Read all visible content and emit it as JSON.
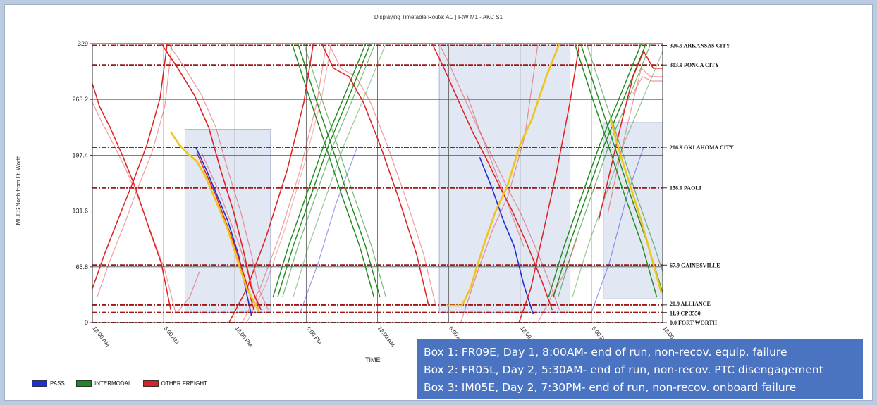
{
  "chart_data": {
    "type": "line",
    "title": "Displaying Timetable Route: AC | FtW M1 - AKC S1",
    "xlabel": "TIME",
    "ylabel": "MILES North from Ft. Worth",
    "xlim": [
      0,
      48
    ],
    "ylim": [
      0,
      329
    ],
    "y_ticks": [
      0,
      65.8,
      131.6,
      197.4,
      263.2,
      329
    ],
    "x_ticks": [
      {
        "t": 0,
        "label": "12:00 AM"
      },
      {
        "t": 6,
        "label": "6:00 AM"
      },
      {
        "t": 12,
        "label": "12:00 PM"
      },
      {
        "t": 18,
        "label": "6:00 PM"
      },
      {
        "t": 24,
        "label": "12:00 AM"
      },
      {
        "t": 30,
        "label": "6:00 AM"
      },
      {
        "t": 36,
        "label": "12:00 PM"
      },
      {
        "t": 42,
        "label": "6:00 PM"
      },
      {
        "t": 48,
        "label": "12:00 AM"
      }
    ],
    "stations": [
      {
        "mile": 326.9,
        "label": "326.9  ARKANSAS CITY"
      },
      {
        "mile": 303.9,
        "label": "303.9  PONCA CITY"
      },
      {
        "mile": 206.9,
        "label": "206.9  OKLAHOMA CITY"
      },
      {
        "mile": 158.9,
        "label": "158.9  PAOLI"
      },
      {
        "mile": 67.9,
        "label": "67.9  GAINESVILLE"
      },
      {
        "mile": 20.9,
        "label": "20.9  ALLIANCE"
      },
      {
        "mile": 11.9,
        "label": "11.9  CP 3550"
      },
      {
        "mile": 0.0,
        "label": "0.0  FORT WORTH"
      }
    ],
    "highlight_boxes": [
      {
        "t0": 7.8,
        "t1": 15.0,
        "m0": 12,
        "m1": 228
      },
      {
        "t0": 29.2,
        "t1": 40.2,
        "m0": 12,
        "m1": 329
      },
      {
        "t0": 43.0,
        "t1": 48.0,
        "m0": 28,
        "m1": 236
      }
    ],
    "series": [
      {
        "name": "PASS.",
        "color": "#1f2fd6",
        "trains": [
          {
            "x": [
              8.7,
              9.6,
              10.5,
              11.4,
              12.3,
              12.9,
              13.4
            ],
            "y": [
              207,
              180,
              150,
              120,
              80,
              40,
              8
            ],
            "w": 1.6
          },
          {
            "x": [
              17.5,
              19.0,
              20.5,
              22.3
            ],
            "y": [
              12,
              70,
              140,
              207
            ],
            "w": 1.1,
            "o": 0.5
          },
          {
            "x": [
              32.6,
              33.6,
              34.6,
              35.5,
              36.3,
              37.1
            ],
            "y": [
              195,
              160,
              120,
              90,
              45,
              10
            ],
            "w": 1.6
          },
          {
            "x": [
              42.0,
              43.5,
              45.0,
              46.4
            ],
            "y": [
              12,
              70,
              150,
              207
            ],
            "w": 1.1,
            "o": 0.5
          }
        ]
      },
      {
        "name": "INTERMODAL.",
        "color": "#1d8a1d",
        "trains": [
          {
            "x": [
              15.2,
              16.5,
              18.0,
              19.5,
              21.0,
              23.0
            ],
            "y": [
              30,
              90,
              150,
              210,
              260,
              329
            ],
            "w": 1.4
          },
          {
            "x": [
              15.6,
              16.9,
              18.4,
              19.9,
              21.4,
              23.4
            ],
            "y": [
              30,
              90,
              150,
              210,
              260,
              329
            ],
            "w": 1.4
          },
          {
            "x": [
              16.0,
              17.3,
              18.8,
              20.3,
              21.8,
              23.8
            ],
            "y": [
              30,
              90,
              150,
              210,
              260,
              329
            ],
            "w": 1.2,
            "o": 0.6
          },
          {
            "x": [
              16.9,
              18.2,
              19.7,
              21.2,
              22.7,
              24.7
            ],
            "y": [
              30,
              90,
              150,
              210,
              260,
              329
            ],
            "w": 1.2,
            "o": 0.45
          },
          {
            "x": [
              16.8,
              18.4,
              19.6,
              21.0,
              22.5,
              23.7
            ],
            "y": [
              329,
              260,
              210,
              150,
              90,
              30
            ],
            "w": 1.4
          },
          {
            "x": [
              17.3,
              18.9,
              20.1,
              21.5,
              23.0,
              24.2
            ],
            "y": [
              329,
              260,
              210,
              150,
              90,
              30
            ],
            "w": 1.4
          },
          {
            "x": [
              17.8,
              19.4,
              20.6,
              22.0,
              23.5,
              24.7
            ],
            "y": [
              329,
              260,
              210,
              150,
              90,
              30
            ],
            "w": 1.2,
            "o": 0.6
          },
          {
            "x": [
              38.4,
              39.7,
              41.2,
              42.7,
              44.2,
              46.2
            ],
            "y": [
              30,
              90,
              150,
              210,
              260,
              329
            ],
            "w": 1.4
          },
          {
            "x": [
              38.8,
              40.1,
              41.6,
              43.1,
              44.6,
              46.6
            ],
            "y": [
              30,
              90,
              150,
              210,
              260,
              329
            ],
            "w": 1.4
          },
          {
            "x": [
              39.2,
              40.5,
              42.0,
              43.5,
              45.0,
              47.0
            ],
            "y": [
              30,
              90,
              150,
              210,
              260,
              329
            ],
            "w": 1.2,
            "o": 0.6
          },
          {
            "x": [
              40.4,
              41.7,
              43.2,
              44.7,
              46.2,
              48.0
            ],
            "y": [
              30,
              90,
              150,
              210,
              260,
              320
            ],
            "w": 1.2,
            "o": 0.45
          },
          {
            "x": [
              40.6,
              42.2,
              43.4,
              44.8,
              46.3,
              47.5
            ],
            "y": [
              329,
              260,
              210,
              150,
              90,
              30
            ],
            "w": 1.4
          },
          {
            "x": [
              41.1,
              42.7,
              43.9,
              45.3,
              46.8,
              48.0
            ],
            "y": [
              329,
              260,
              210,
              150,
              90,
              35
            ],
            "w": 1.4
          },
          {
            "x": [
              41.6,
              43.2,
              44.4,
              45.8,
              47.3,
              48.0
            ],
            "y": [
              329,
              260,
              210,
              150,
              90,
              60
            ],
            "w": 1.2,
            "o": 0.6
          }
        ]
      },
      {
        "name": "OTHER FREIGHT",
        "color": "#e02020",
        "trains": [
          {
            "x": [
              0.0,
              0.6,
              1.5,
              2.6,
              3.6,
              4.8,
              5.8,
              6.6
            ],
            "y": [
              282,
              255,
              230,
              195,
              160,
              110,
              70,
              15
            ],
            "w": 1.5
          },
          {
            "x": [
              0.0,
              0.8,
              1.8,
              2.9,
              3.9,
              5.1,
              6.1,
              7.0
            ],
            "y": [
              260,
              236,
              210,
              178,
              146,
              100,
              62,
              12
            ],
            "w": 1.2,
            "o": 0.45
          },
          {
            "x": [
              0.0,
              1.0,
              2.4,
              3.4,
              4.6,
              5.7,
              6.3
            ],
            "y": [
              40,
              80,
              130,
              165,
              210,
              265,
              329
            ],
            "w": 1.5
          },
          {
            "x": [
              0.4,
              1.4,
              2.8,
              3.8,
              5.0,
              6.1,
              6.7
            ],
            "y": [
              30,
              70,
              120,
              158,
              200,
              255,
              329
            ],
            "w": 1.2,
            "o": 0.45
          },
          {
            "x": [
              5.8,
              7.2,
              8.6,
              9.8,
              10.8,
              11.9,
              12.8,
              13.4,
              14.2
            ],
            "y": [
              329,
              300,
              268,
              230,
              180,
              130,
              80,
              40,
              15
            ],
            "w": 1.6
          },
          {
            "x": [
              6.4,
              7.8,
              9.2,
              10.4,
              11.4,
              12.5,
              13.4,
              14.0,
              14.8
            ],
            "y": [
              329,
              300,
              268,
              230,
              180,
              130,
              80,
              40,
              15
            ],
            "w": 1.2,
            "o": 0.45
          },
          {
            "x": [
              8.8,
              9.6,
              10.4,
              11.2,
              12.0,
              12.9,
              13.6
            ],
            "y": [
              200,
              175,
              150,
              120,
              90,
              50,
              15
            ],
            "w": 1.5
          },
          {
            "x": [
              9.2,
              10.0,
              10.8,
              11.6,
              12.4,
              13.3,
              14.0
            ],
            "y": [
              200,
              175,
              150,
              120,
              90,
              50,
              15
            ],
            "w": 1.2,
            "o": 0.45
          },
          {
            "x": [
              7.0,
              8.2,
              9.0
            ],
            "y": [
              10,
              30,
              60
            ],
            "w": 1.2,
            "o": 0.45
          },
          {
            "x": [
              11.5,
              13.0,
              14.6,
              16.4,
              17.8,
              18.6
            ],
            "y": [
              0,
              40,
              100,
              180,
              260,
              329
            ],
            "w": 1.5
          },
          {
            "x": [
              12.6,
              14.1,
              15.7,
              17.5,
              18.9,
              19.7
            ],
            "y": [
              0,
              40,
              100,
              180,
              260,
              329
            ],
            "w": 1.2,
            "o": 0.45
          },
          {
            "x": [
              13.0,
              14.6,
              16.2,
              17.9,
              19.3,
              20.1
            ],
            "y": [
              0,
              45,
              110,
              190,
              265,
              329
            ],
            "w": 1.1,
            "o": 0.35
          },
          {
            "x": [
              19.3,
              20.3,
              21.6,
              22.8,
              24.2,
              25.7,
              27.3,
              28.3
            ],
            "y": [
              329,
              300,
              290,
              260,
              210,
              150,
              80,
              20
            ],
            "w": 1.5
          },
          {
            "x": [
              19.9,
              20.9,
              22.2,
              23.4,
              24.8,
              26.3,
              27.9,
              28.9
            ],
            "y": [
              329,
              300,
              290,
              260,
              210,
              150,
              80,
              20
            ],
            "w": 1.2,
            "o": 0.45
          },
          {
            "x": [
              28.6,
              29.6,
              30.8,
              32.0,
              33.2,
              34.3,
              35.4,
              36.6,
              37.8,
              38.7
            ],
            "y": [
              329,
              300,
              262,
              225,
              192,
              160,
              130,
              92,
              50,
              15
            ],
            "w": 1.5
          },
          {
            "x": [
              29.2,
              30.2,
              31.4,
              32.6,
              33.8,
              34.9,
              36.0,
              37.2,
              38.4,
              39.3
            ],
            "y": [
              329,
              300,
              262,
              225,
              192,
              160,
              130,
              92,
              50,
              15
            ],
            "w": 1.2,
            "o": 0.45
          },
          {
            "x": [
              31.5,
              32.5,
              33.6,
              34.7,
              35.5,
              36.3
            ],
            "y": [
              270,
              230,
              190,
              150,
              120,
              90
            ],
            "w": 1.2,
            "o": 0.45
          },
          {
            "x": [
              31.0,
              32.3,
              33.7,
              35.0,
              36.4,
              37.5
            ],
            "y": [
              0,
              55,
              110,
              150,
              220,
              329
            ],
            "w": 1.2,
            "o": 0.45
          },
          {
            "x": [
              35.9,
              36.9,
              38.0,
              39.1,
              40.2,
              41.0
            ],
            "y": [
              0,
              40,
              110,
              180,
              260,
              329
            ],
            "w": 1.5
          },
          {
            "x": [
              37.5,
              38.6,
              39.8,
              40.8
            ],
            "y": [
              0,
              30,
              60,
              100
            ],
            "w": 1.2,
            "o": 0.45
          },
          {
            "x": [
              42.6,
              43.6,
              44.6,
              45.5,
              46.4,
              47.2,
              48.0
            ],
            "y": [
              120,
              180,
              240,
              290,
              320,
              300,
              300
            ],
            "w": 1.5
          },
          {
            "x": [
              43.4,
              44.4,
              45.4,
              46.2,
              47.0,
              48.0
            ],
            "y": [
              130,
              195,
              255,
              300,
              290,
              290
            ],
            "w": 1.2,
            "o": 0.45
          },
          {
            "x": [
              45.5,
              46.3,
              47.1,
              48.0
            ],
            "y": [
              270,
              290,
              285,
              285
            ],
            "w": 1.2,
            "o": 0.45
          }
        ]
      },
      {
        "name": "highlight",
        "color": "#f0c419",
        "trains": [
          {
            "x": [
              6.6,
              7.3,
              8.0,
              8.8,
              9.6,
              10.5,
              11.4,
              12.3,
              13.0,
              14.0
            ],
            "y": [
              225,
              210,
              200,
              190,
              170,
              140,
              110,
              70,
              40,
              14
            ],
            "w": 2.6
          },
          {
            "x": [
              29.8,
              31.1,
              31.8,
              32.9,
              33.9,
              34.9,
              36.0,
              37.0,
              38.2,
              39.3
            ],
            "y": [
              20,
              20,
              40,
              90,
              130,
              160,
              210,
              240,
              290,
              329
            ],
            "w": 2.6
          },
          {
            "x": [
              43.6,
              44.4,
              45.3,
              46.2,
              47.0,
              47.9
            ],
            "y": [
              240,
              200,
              160,
              120,
              80,
              35
            ],
            "w": 2.6
          }
        ]
      }
    ]
  },
  "legend": [
    {
      "label": "PASS.",
      "color": "#1f2fd6"
    },
    {
      "label": "INTERMODAL.",
      "color": "#1d8a1d"
    },
    {
      "label": "OTHER FREIGHT",
      "color": "#e02020"
    }
  ],
  "notes": [
    "Box 1: FR09E, Day 1, 8:00AM- end of run, non-recov. equip. failure",
    "Box 2: FR05L, Day 2, 5:30AM- end of run, non-recov. PTC disengagement",
    "Box 3: IM05E, Day 2, 7:30PM- end of run, non-recov. onboard failure"
  ]
}
